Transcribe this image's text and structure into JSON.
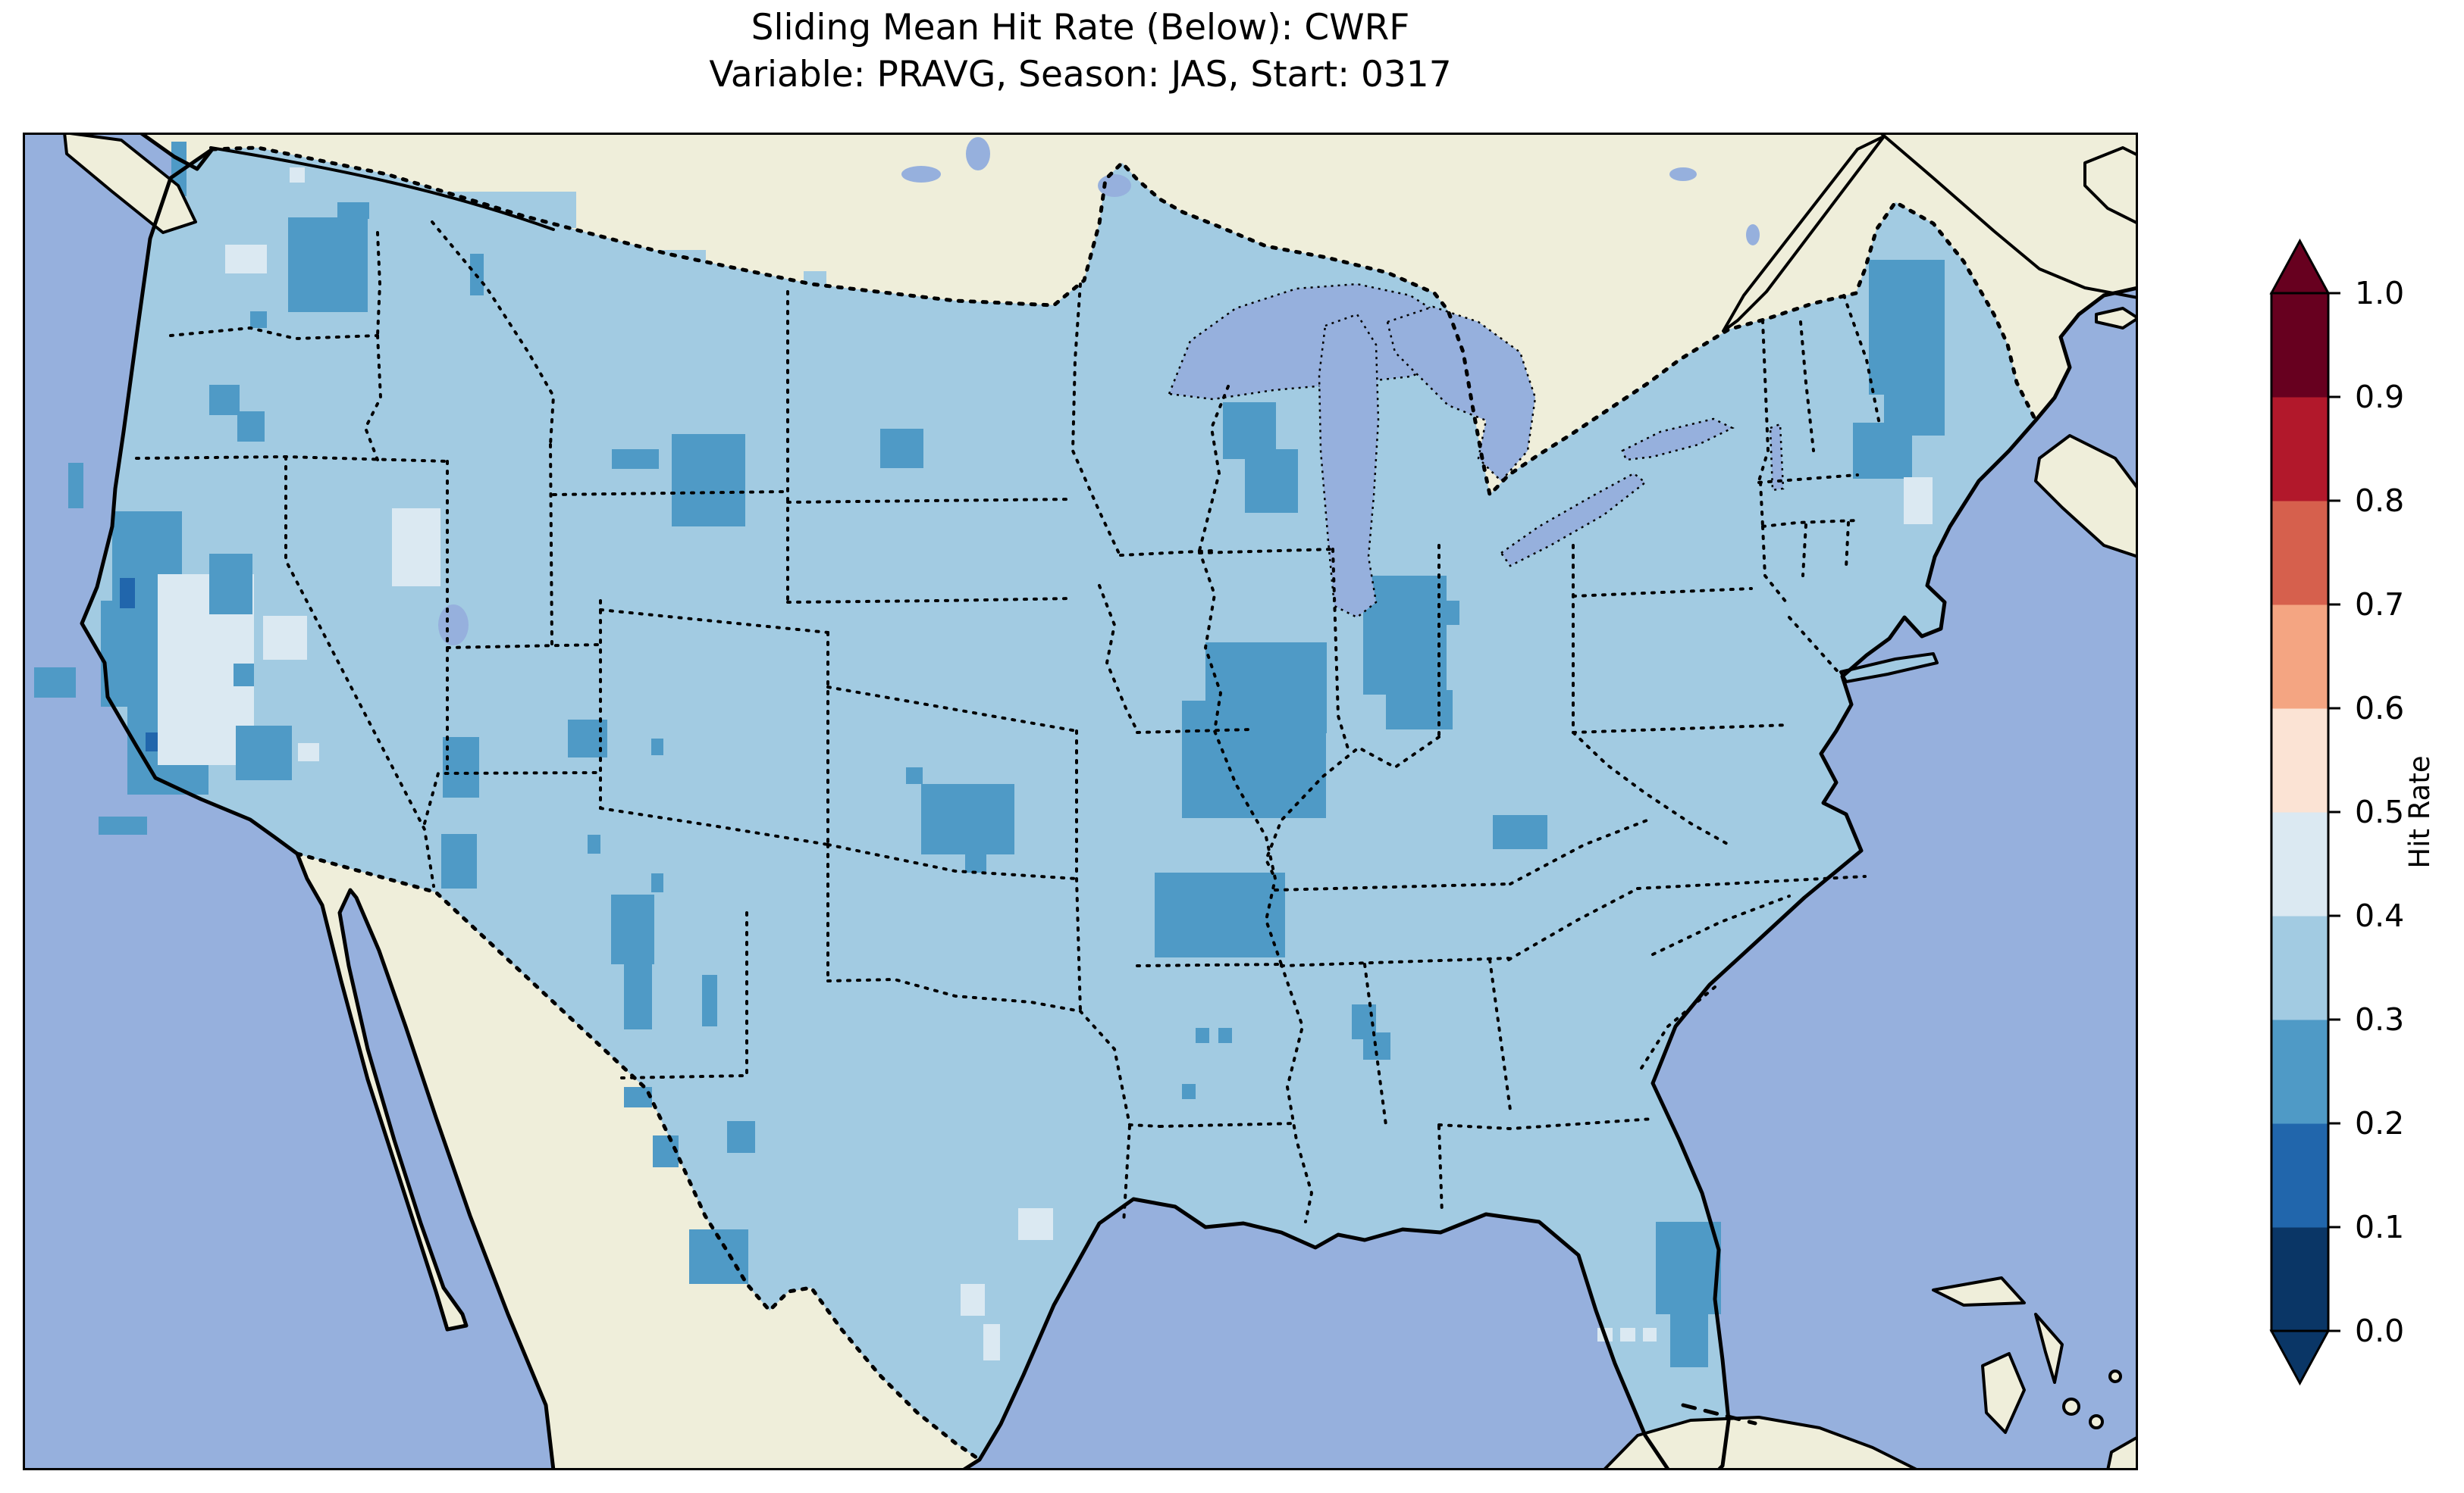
{
  "figure": {
    "title_line1": "Sliding Mean Hit Rate (Below): CWRF",
    "title_line2": "Variable: PRAVG, Season: JAS, Start: 0317"
  },
  "chart_data": {
    "type": "heatmap",
    "subtype": "geographic_choropleth_map",
    "title": "Sliding Mean Hit Rate (Below): CWRF",
    "subtitle": "Variable: PRAVG, Season: JAS, Start: 0317",
    "metric": "Sliding Mean Hit Rate (Below)",
    "model": "CWRF",
    "variable": "PRAVG",
    "season": "JAS",
    "start": "0317",
    "region": "Contiguous United States with surrounding Canada, Mexico, Gulf of Mexico, Bahamas and Cuba",
    "legend_position": "right",
    "grid": false,
    "colorbar": {
      "label": "Hit Rate",
      "orientation": "vertical",
      "extend": "both",
      "ticks": [
        "0.0",
        "0.1",
        "0.2",
        "0.3",
        "0.4",
        "0.5",
        "0.6",
        "0.7",
        "0.8",
        "0.9",
        "1.0"
      ],
      "bins": [
        {
          "key": "0.0-0.1",
          "min": 0.0,
          "max": 0.1,
          "color": "#0a3666"
        },
        {
          "key": "0.1-0.2",
          "min": 0.1,
          "max": 0.2,
          "color": "#2166ac"
        },
        {
          "key": "0.2-0.3",
          "min": 0.2,
          "max": 0.3,
          "color": "#4f9ac6"
        },
        {
          "key": "0.3-0.4",
          "min": 0.3,
          "max": 0.4,
          "color": "#a2cbe2"
        },
        {
          "key": "0.4-0.5",
          "min": 0.4,
          "max": 0.5,
          "color": "#dbe9f2"
        },
        {
          "key": "0.5-0.6",
          "min": 0.5,
          "max": 0.6,
          "color": "#fbe3d4"
        },
        {
          "key": "0.6-0.7",
          "min": 0.6,
          "max": 0.7,
          "color": "#f4a582"
        },
        {
          "key": "0.7-0.8",
          "min": 0.7,
          "max": 0.8,
          "color": "#d6604d"
        },
        {
          "key": "0.8-0.9",
          "min": 0.8,
          "max": 0.9,
          "color": "#b2182b"
        },
        {
          "key": "0.9-1.0",
          "min": 0.9,
          "max": 1.0,
          "color": "#67001f"
        }
      ],
      "extend_low_color": "#0a3666",
      "extend_high_color": "#67001f"
    },
    "map_colors": {
      "ocean": "#96b0dd",
      "land_no_data": "#efeeda",
      "coastline": "#000000",
      "dominant_bin": "0.3-0.4"
    },
    "pattern_summary": "Most of CONUS has hit rate 0.3-0.4; patches of 0.2-0.3 over the Cascades, Sierra Nevada, Rockies, upper Midwest, Ohio Valley, Ozarks, interior Maine and east-central Florida; scattered 0.4-0.5 cells over central Idaho, Nevada, Washington and the Texas coast.",
    "grid_cells": [
      [
        196,
        12,
        20,
        72,
        "0.2-0.3"
      ],
      [
        350,
        112,
        105,
        125,
        "0.2-0.3"
      ],
      [
        415,
        92,
        42,
        22,
        "0.2-0.3"
      ],
      [
        300,
        236,
        22,
        22,
        "0.2-0.3"
      ],
      [
        267,
        148,
        55,
        38,
        "0.4-0.5"
      ],
      [
        352,
        46,
        20,
        20,
        "0.4-0.5"
      ],
      [
        590,
        160,
        18,
        55,
        "0.2-0.3"
      ],
      [
        246,
        333,
        40,
        40,
        "0.2-0.3"
      ],
      [
        283,
        368,
        36,
        40,
        "0.2-0.3"
      ],
      [
        60,
        436,
        20,
        60,
        "0.2-0.3"
      ],
      [
        15,
        706,
        55,
        40,
        "0.2-0.3"
      ],
      [
        118,
        500,
        92,
        118,
        "0.2-0.3"
      ],
      [
        103,
        618,
        117,
        140,
        "0.2-0.3"
      ],
      [
        138,
        756,
        107,
        118,
        "0.2-0.3"
      ],
      [
        128,
        588,
        20,
        40,
        "0.1-0.2"
      ],
      [
        162,
        792,
        20,
        25,
        "0.1-0.2"
      ],
      [
        100,
        903,
        64,
        24,
        "0.2-0.3"
      ],
      [
        333,
        833,
        22,
        22,
        "0.2-0.3"
      ],
      [
        178,
        583,
        127,
        252,
        "0.4-0.5"
      ],
      [
        317,
        638,
        58,
        58,
        "0.4-0.5"
      ],
      [
        363,
        806,
        28,
        24,
        "0.4-0.5"
      ],
      [
        246,
        556,
        57,
        80,
        "0.2-0.3"
      ],
      [
        278,
        701,
        27,
        30,
        "0.2-0.3"
      ],
      [
        281,
        783,
        74,
        72,
        "0.2-0.3"
      ],
      [
        487,
        496,
        64,
        103,
        "0.4-0.5"
      ],
      [
        554,
        798,
        48,
        80,
        "0.2-0.3"
      ],
      [
        552,
        926,
        47,
        72,
        "0.2-0.3"
      ],
      [
        719,
        775,
        52,
        50,
        "0.2-0.3"
      ],
      [
        745,
        927,
        17,
        25,
        "0.2-0.3"
      ],
      [
        829,
        800,
        16,
        22,
        "0.2-0.3"
      ],
      [
        829,
        978,
        16,
        25,
        "0.2-0.3"
      ],
      [
        777,
        418,
        62,
        26,
        "0.2-0.3"
      ],
      [
        856,
        398,
        97,
        122,
        "0.2-0.3"
      ],
      [
        1131,
        391,
        57,
        52,
        "0.2-0.3"
      ],
      [
        1165,
        838,
        22,
        22,
        "0.2-0.3"
      ],
      [
        1185,
        860,
        123,
        93,
        "0.2-0.3"
      ],
      [
        1243,
        953,
        28,
        24,
        "0.2-0.3"
      ],
      [
        776,
        1006,
        57,
        92,
        "0.2-0.3"
      ],
      [
        793,
        1096,
        37,
        88,
        "0.2-0.3"
      ],
      [
        896,
        1112,
        20,
        68,
        "0.2-0.3"
      ],
      [
        793,
        1260,
        37,
        27,
        "0.2-0.3"
      ],
      [
        831,
        1324,
        34,
        42,
        "0.2-0.3"
      ],
      [
        929,
        1305,
        37,
        42,
        "0.2-0.3"
      ],
      [
        879,
        1448,
        78,
        72,
        "0.2-0.3"
      ],
      [
        1614,
        238,
        92,
        38,
        "0.2-0.3"
      ],
      [
        1583,
        356,
        70,
        75,
        "0.2-0.3"
      ],
      [
        1612,
        418,
        70,
        84,
        "0.2-0.3"
      ],
      [
        1768,
        585,
        110,
        157,
        "0.2-0.3"
      ],
      [
        1798,
        736,
        88,
        52,
        "0.2-0.3"
      ],
      [
        1869,
        618,
        26,
        32,
        "0.2-0.3"
      ],
      [
        1560,
        673,
        160,
        120,
        "0.2-0.3"
      ],
      [
        1529,
        750,
        190,
        155,
        "0.2-0.3"
      ],
      [
        1493,
        977,
        172,
        112,
        "0.2-0.3"
      ],
      [
        1939,
        901,
        72,
        45,
        "0.2-0.3"
      ],
      [
        1547,
        1182,
        18,
        20,
        "0.2-0.3"
      ],
      [
        1577,
        1182,
        18,
        20,
        "0.2-0.3"
      ],
      [
        1529,
        1256,
        18,
        20,
        "0.2-0.3"
      ],
      [
        1753,
        1151,
        32,
        46,
        "0.2-0.3"
      ],
      [
        1768,
        1188,
        36,
        36,
        "0.2-0.3"
      ],
      [
        2154,
        1438,
        86,
        122,
        "0.2-0.3"
      ],
      [
        2173,
        1558,
        50,
        72,
        "0.2-0.3"
      ],
      [
        2077,
        1578,
        20,
        18,
        "0.4-0.5"
      ],
      [
        2107,
        1578,
        20,
        18,
        "0.4-0.5"
      ],
      [
        2137,
        1578,
        18,
        18,
        "0.4-0.5"
      ],
      [
        1313,
        1420,
        46,
        42,
        "0.4-0.5"
      ],
      [
        1237,
        1520,
        32,
        42,
        "0.4-0.5"
      ],
      [
        1267,
        1573,
        22,
        48,
        "0.4-0.5"
      ],
      [
        2414,
        383,
        78,
        74,
        "0.2-0.3"
      ],
      [
        2435,
        168,
        100,
        178,
        "0.2-0.3"
      ],
      [
        2455,
        310,
        80,
        90,
        "0.2-0.3"
      ],
      [
        2481,
        455,
        38,
        62,
        "0.4-0.5"
      ],
      [
        545,
        78,
        185,
        48,
        "0.3-0.4"
      ],
      [
        837,
        155,
        64,
        38,
        "0.3-0.4"
      ],
      [
        1030,
        183,
        30,
        32,
        "0.3-0.4"
      ]
    ]
  }
}
